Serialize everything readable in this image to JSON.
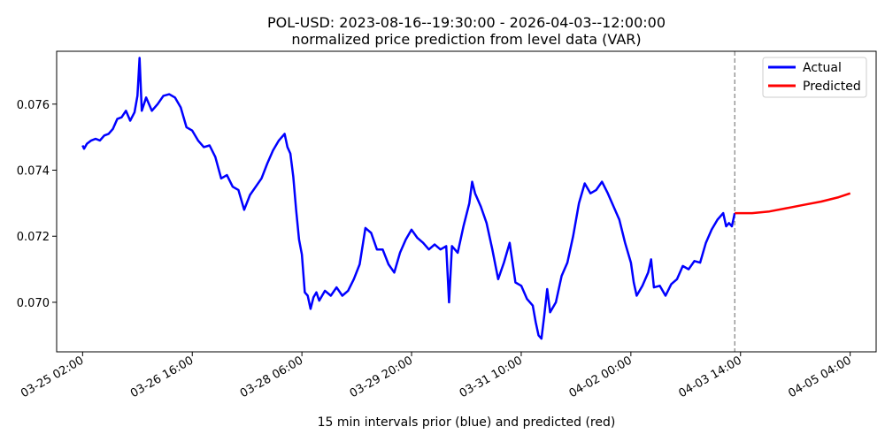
{
  "chart_data": {
    "type": "line",
    "title": "POL-USD: 2023-08-16--19:30:00 - 2026-04-03--12:00:00",
    "subtitle": "normalized price prediction from level data (VAR)",
    "xlabel": "15 min intervals prior (blue) and predicted (red)",
    "ylabel": "",
    "x_ticks": [
      "03-25 02:00",
      "03-26 16:00",
      "03-28 06:00",
      "03-29 20:00",
      "03-31 10:00",
      "04-02 00:00",
      "04-03 14:00",
      "04-05 04:00"
    ],
    "y_ticks": [
      "0.070",
      "0.072",
      "0.074",
      "0.076"
    ],
    "ylim": [
      0.0685,
      0.0776
    ],
    "x_domain": [
      "03-24 17:00",
      "04-05 13:00"
    ],
    "legend_position": "top-right",
    "grid": false,
    "forecast_start": "04-03 12:00",
    "series": [
      {
        "name": "Actual",
        "color": "#0000ff",
        "points": [
          [
            "03-25 02:00",
            0.07475
          ],
          [
            "03-25 02:30",
            0.07465
          ],
          [
            "03-25 03:30",
            0.0748
          ],
          [
            "03-25 05:00",
            0.0749
          ],
          [
            "03-25 06:30",
            0.07495
          ],
          [
            "03-25 08:00",
            0.0749
          ],
          [
            "03-25 09:30",
            0.07505
          ],
          [
            "03-25 11:00",
            0.0751
          ],
          [
            "03-25 12:30",
            0.07525
          ],
          [
            "03-25 14:00",
            0.07555
          ],
          [
            "03-25 15:30",
            0.0756
          ],
          [
            "03-25 17:00",
            0.0758
          ],
          [
            "03-25 18:30",
            0.0755
          ],
          [
            "03-25 20:00",
            0.07575
          ],
          [
            "03-25 21:00",
            0.07625
          ],
          [
            "03-25 21:45",
            0.0774
          ],
          [
            "03-25 22:30",
            0.0758
          ],
          [
            "03-26 00:00",
            0.0762
          ],
          [
            "03-26 02:00",
            0.0758
          ],
          [
            "03-26 04:00",
            0.076
          ],
          [
            "03-26 06:00",
            0.07625
          ],
          [
            "03-26 08:00",
            0.0763
          ],
          [
            "03-26 10:00",
            0.0762
          ],
          [
            "03-26 12:00",
            0.0759
          ],
          [
            "03-26 14:00",
            0.0753
          ],
          [
            "03-26 16:00",
            0.0752
          ],
          [
            "03-26 18:00",
            0.0749
          ],
          [
            "03-26 20:00",
            0.0747
          ],
          [
            "03-26 22:00",
            0.07475
          ],
          [
            "03-27 00:00",
            0.0744
          ],
          [
            "03-27 02:00",
            0.07375
          ],
          [
            "03-27 04:00",
            0.07385
          ],
          [
            "03-27 06:00",
            0.0735
          ],
          [
            "03-27 08:00",
            0.0734
          ],
          [
            "03-27 10:00",
            0.0728
          ],
          [
            "03-27 12:00",
            0.07325
          ],
          [
            "03-27 14:00",
            0.0735
          ],
          [
            "03-27 16:00",
            0.07375
          ],
          [
            "03-27 18:00",
            0.0742
          ],
          [
            "03-27 20:00",
            0.0746
          ],
          [
            "03-27 22:00",
            0.0749
          ],
          [
            "03-28 00:00",
            0.0751
          ],
          [
            "03-28 01:00",
            0.0747
          ],
          [
            "03-28 02:00",
            0.0745
          ],
          [
            "03-28 03:00",
            0.0738
          ],
          [
            "03-28 04:00",
            0.0728
          ],
          [
            "03-28 05:00",
            0.0719
          ],
          [
            "03-28 06:00",
            0.07145
          ],
          [
            "03-28 07:00",
            0.0703
          ],
          [
            "03-28 08:00",
            0.0702
          ],
          [
            "03-28 09:00",
            0.0698
          ],
          [
            "03-28 10:00",
            0.07015
          ],
          [
            "03-28 11:00",
            0.0703
          ],
          [
            "03-28 12:00",
            0.07005
          ],
          [
            "03-28 14:00",
            0.07035
          ],
          [
            "03-28 16:00",
            0.0702
          ],
          [
            "03-28 18:00",
            0.07045
          ],
          [
            "03-28 20:00",
            0.0702
          ],
          [
            "03-28 22:00",
            0.07035
          ],
          [
            "03-29 00:00",
            0.0707
          ],
          [
            "03-29 02:00",
            0.07115
          ],
          [
            "03-29 04:00",
            0.07225
          ],
          [
            "03-29 06:00",
            0.0721
          ],
          [
            "03-29 08:00",
            0.0716
          ],
          [
            "03-29 10:00",
            0.0716
          ],
          [
            "03-29 12:00",
            0.07115
          ],
          [
            "03-29 14:00",
            0.0709
          ],
          [
            "03-29 16:00",
            0.0715
          ],
          [
            "03-29 18:00",
            0.0719
          ],
          [
            "03-29 20:00",
            0.0722
          ],
          [
            "03-29 22:00",
            0.07195
          ],
          [
            "03-30 00:00",
            0.0718
          ],
          [
            "03-30 02:00",
            0.0716
          ],
          [
            "03-30 04:00",
            0.07175
          ],
          [
            "03-30 06:00",
            0.0716
          ],
          [
            "03-30 08:00",
            0.0717
          ],
          [
            "03-30 09:00",
            0.07
          ],
          [
            "03-30 10:00",
            0.0717
          ],
          [
            "03-30 12:00",
            0.0715
          ],
          [
            "03-30 14:00",
            0.0723
          ],
          [
            "03-30 16:00",
            0.073
          ],
          [
            "03-30 17:00",
            0.07365
          ],
          [
            "03-30 18:00",
            0.0733
          ],
          [
            "03-30 20:00",
            0.0729
          ],
          [
            "03-30 22:00",
            0.0724
          ],
          [
            "03-31 00:00",
            0.0716
          ],
          [
            "03-31 02:00",
            0.0707
          ],
          [
            "03-31 04:00",
            0.0712
          ],
          [
            "03-31 06:00",
            0.0718
          ],
          [
            "03-31 08:00",
            0.0706
          ],
          [
            "03-31 10:00",
            0.0705
          ],
          [
            "03-31 12:00",
            0.0701
          ],
          [
            "03-31 14:00",
            0.0699
          ],
          [
            "03-31 15:00",
            0.0694
          ],
          [
            "03-31 16:00",
            0.069
          ],
          [
            "03-31 17:00",
            0.0689
          ],
          [
            "03-31 18:00",
            0.0696
          ],
          [
            "03-31 19:00",
            0.0704
          ],
          [
            "03-31 20:00",
            0.0697
          ],
          [
            "03-31 22:00",
            0.07
          ],
          [
            "04-01 00:00",
            0.0708
          ],
          [
            "04-01 02:00",
            0.0712
          ],
          [
            "04-01 04:00",
            0.072
          ],
          [
            "04-01 06:00",
            0.073
          ],
          [
            "04-01 08:00",
            0.0736
          ],
          [
            "04-01 10:00",
            0.0733
          ],
          [
            "04-01 12:00",
            0.0734
          ],
          [
            "04-01 14:00",
            0.07365
          ],
          [
            "04-01 16:00",
            0.0733
          ],
          [
            "04-01 18:00",
            0.0729
          ],
          [
            "04-01 20:00",
            0.0725
          ],
          [
            "04-01 22:00",
            0.0718
          ],
          [
            "04-02 00:00",
            0.0712
          ],
          [
            "04-02 01:00",
            0.0706
          ],
          [
            "04-02 02:00",
            0.0702
          ],
          [
            "04-02 04:00",
            0.0705
          ],
          [
            "04-02 06:00",
            0.0709
          ],
          [
            "04-02 07:00",
            0.0713
          ],
          [
            "04-02 08:00",
            0.07045
          ],
          [
            "04-02 10:00",
            0.0705
          ],
          [
            "04-02 12:00",
            0.0702
          ],
          [
            "04-02 14:00",
            0.07055
          ],
          [
            "04-02 16:00",
            0.0707
          ],
          [
            "04-02 18:00",
            0.0711
          ],
          [
            "04-02 20:00",
            0.071
          ],
          [
            "04-02 22:00",
            0.07125
          ],
          [
            "04-03 00:00",
            0.0712
          ],
          [
            "04-03 02:00",
            0.0718
          ],
          [
            "04-03 04:00",
            0.0722
          ],
          [
            "04-03 06:00",
            0.0725
          ],
          [
            "04-03 08:00",
            0.0727
          ],
          [
            "04-03 09:00",
            0.0723
          ],
          [
            "04-03 10:00",
            0.0724
          ],
          [
            "04-03 11:00",
            0.0723
          ],
          [
            "04-03 12:00",
            0.0727
          ]
        ]
      },
      {
        "name": "Predicted",
        "color": "#ff0000",
        "points": [
          [
            "04-03 12:00",
            0.0727
          ],
          [
            "04-03 18:00",
            0.0727
          ],
          [
            "04-04 00:00",
            0.07275
          ],
          [
            "04-04 06:00",
            0.07285
          ],
          [
            "04-04 12:00",
            0.07295
          ],
          [
            "04-04 18:00",
            0.07305
          ],
          [
            "04-05 00:00",
            0.07318
          ],
          [
            "04-05 04:00",
            0.0733
          ]
        ]
      }
    ]
  }
}
